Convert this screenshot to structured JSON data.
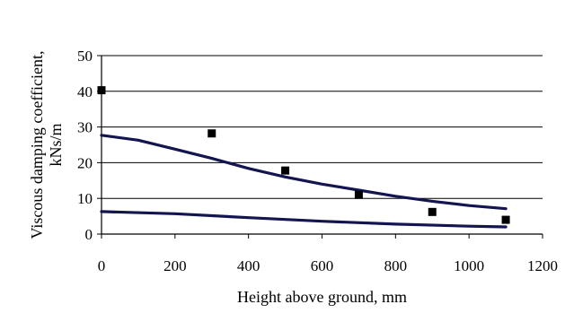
{
  "chart_data": {
    "type": "scatter",
    "xlabel": "Height above ground, mm",
    "ylabel_lines": [
      "Viscous damping coefficient,",
      "kNs/m"
    ],
    "xlim": [
      0,
      1200
    ],
    "ylim": [
      0,
      50
    ],
    "x_ticks": [
      0,
      200,
      400,
      600,
      800,
      1000,
      1200
    ],
    "y_ticks": [
      0,
      10,
      20,
      30,
      40,
      50
    ],
    "grid": "horizontal",
    "legend": "none",
    "series": [
      {
        "kind": "points",
        "marker": "square",
        "color": "#000000",
        "x": [
          0,
          300,
          500,
          700,
          900,
          1100
        ],
        "y": [
          40.3,
          28.2,
          17.8,
          11.0,
          6.2,
          4.0
        ]
      },
      {
        "kind": "line",
        "color": "#141450",
        "x": [
          0,
          100,
          200,
          300,
          400,
          500,
          600,
          700,
          800,
          900,
          1000,
          1100
        ],
        "y": [
          27.7,
          26.3,
          23.8,
          21.2,
          18.4,
          16.0,
          14.0,
          12.3,
          10.6,
          9.2,
          8.0,
          7.1
        ]
      },
      {
        "kind": "line",
        "color": "#141450",
        "x": [
          0,
          200,
          400,
          600,
          800,
          1000,
          1100
        ],
        "y": [
          6.3,
          5.7,
          4.6,
          3.6,
          2.8,
          2.2,
          2.0
        ]
      }
    ]
  }
}
